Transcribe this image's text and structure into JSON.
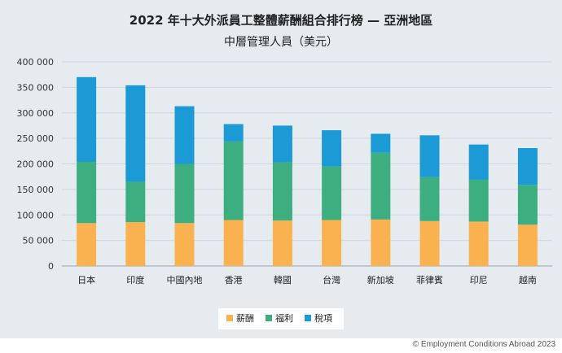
{
  "chart_data": {
    "type": "bar",
    "stacked": true,
    "title": "2022 年十大外派員工整體薪酬組合排行榜 — 亞洲地區",
    "subtitle": "中層管理人員（美元）",
    "categories": [
      "日本",
      "印度",
      "中國內地",
      "香港",
      "韓國",
      "台灣",
      "新加坡",
      "菲律賓",
      "印尼",
      "越南"
    ],
    "series": [
      {
        "name": "薪酬",
        "color": "#f9b24f",
        "values": [
          84000,
          86000,
          84000,
          90000,
          89000,
          90000,
          91000,
          88000,
          87000,
          81000
        ]
      },
      {
        "name": "福利",
        "color": "#3dae7f",
        "values": [
          120000,
          79000,
          116000,
          154000,
          114000,
          105000,
          131000,
          86000,
          82000,
          78000
        ]
      },
      {
        "name": "稅項",
        "color": "#1b9ad6",
        "values": [
          166000,
          189000,
          113000,
          34000,
          72000,
          71000,
          37000,
          82000,
          69000,
          72000
        ]
      }
    ],
    "yticks": [
      "0",
      "50 000",
      "100 000",
      "150 000",
      "200 000",
      "250 000",
      "300 000",
      "350 000",
      "400 000"
    ],
    "ylim": [
      0,
      400000
    ],
    "legend_position": "bottom"
  },
  "footer": {
    "copyright": "© Employment Conditions Abroad 2023"
  }
}
